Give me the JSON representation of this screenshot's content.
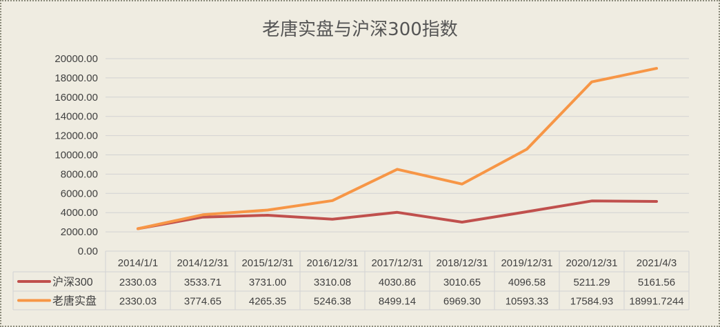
{
  "colors": {
    "background": "#efece1",
    "grid": "#d2d2d2",
    "series_hs300": "#c0504d",
    "series_laotang": "#f79646"
  },
  "chart_data": {
    "type": "line",
    "title": "老唐实盘与沪深300指数",
    "xlabel": "",
    "ylabel": "",
    "ylim": [
      0,
      20000
    ],
    "grid": true,
    "legend": "data-table-left",
    "y_ticks": [
      "0.00",
      "2000.00",
      "4000.00",
      "6000.00",
      "8000.00",
      "10000.00",
      "12000.00",
      "14000.00",
      "16000.00",
      "18000.00",
      "20000.00"
    ],
    "categories": [
      "2014/1/1",
      "2014/12/31",
      "2015/12/31",
      "2016/12/31",
      "2017/12/31",
      "2018/12/31",
      "2019/12/31",
      "2020/12/31",
      "2021/4/3"
    ],
    "series": [
      {
        "name": "沪深300",
        "color": "#c0504d",
        "values": [
          2330.03,
          3533.71,
          3731.0,
          3310.08,
          4030.86,
          3010.65,
          4096.58,
          5211.29,
          5161.56
        ],
        "labels": [
          "2330.03",
          "3533.71",
          "3731.00",
          "3310.08",
          "4030.86",
          "3010.65",
          "4096.58",
          "5211.29",
          "5161.56"
        ]
      },
      {
        "name": "老唐实盘",
        "color": "#f79646",
        "values": [
          2330.03,
          3774.65,
          4265.35,
          5246.38,
          8499.14,
          6969.3,
          10593.33,
          17584.93,
          18991.7244
        ],
        "labels": [
          "2330.03",
          "3774.65",
          "4265.35",
          "5246.38",
          "8499.14",
          "6969.30",
          "10593.33",
          "17584.93",
          "18991.7244"
        ]
      }
    ]
  }
}
